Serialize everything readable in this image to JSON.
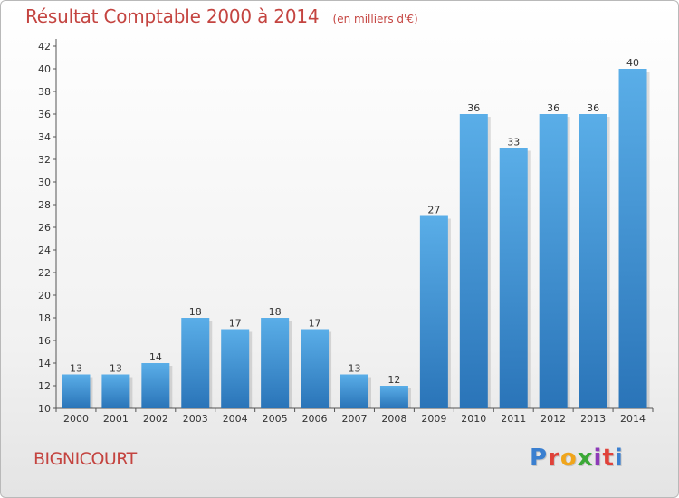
{
  "header": {
    "title": "Résultat Comptable 2000 à 2014",
    "subtitle": "(en milliers d'€)"
  },
  "footer": {
    "commune": "BIGNICOURT",
    "logo_text": "Proxiti",
    "logo_colors": [
      "#3a7fd0",
      "#e0423a",
      "#f0a51c",
      "#3aa836",
      "#8d3ab8",
      "#e0423a",
      "#3a7fd0"
    ]
  },
  "chart_data": {
    "type": "bar",
    "categories": [
      "2000",
      "2001",
      "2002",
      "2003",
      "2004",
      "2005",
      "2006",
      "2007",
      "2008",
      "2009",
      "2010",
      "2011",
      "2012",
      "2013",
      "2014"
    ],
    "values": [
      13,
      13,
      14,
      18,
      17,
      18,
      17,
      13,
      12,
      27,
      36,
      33,
      36,
      36,
      40
    ],
    "data_labels": [
      "13",
      "13",
      "14",
      "18",
      "17",
      "18",
      "17",
      "13",
      "12",
      "27",
      "36",
      "33",
      "36",
      "36",
      "40"
    ],
    "title": "Résultat Comptable 2000 à 2014",
    "ylim": [
      10,
      42
    ],
    "yticks": [
      10,
      12,
      14,
      16,
      18,
      20,
      22,
      24,
      26,
      28,
      30,
      32,
      34,
      36,
      38,
      40,
      42
    ],
    "grid": false,
    "legend": "none",
    "colors": {
      "bar_top": "#5aaee8",
      "bar_bottom": "#2a74b8",
      "axis": "#555555",
      "label": "#333333"
    }
  }
}
